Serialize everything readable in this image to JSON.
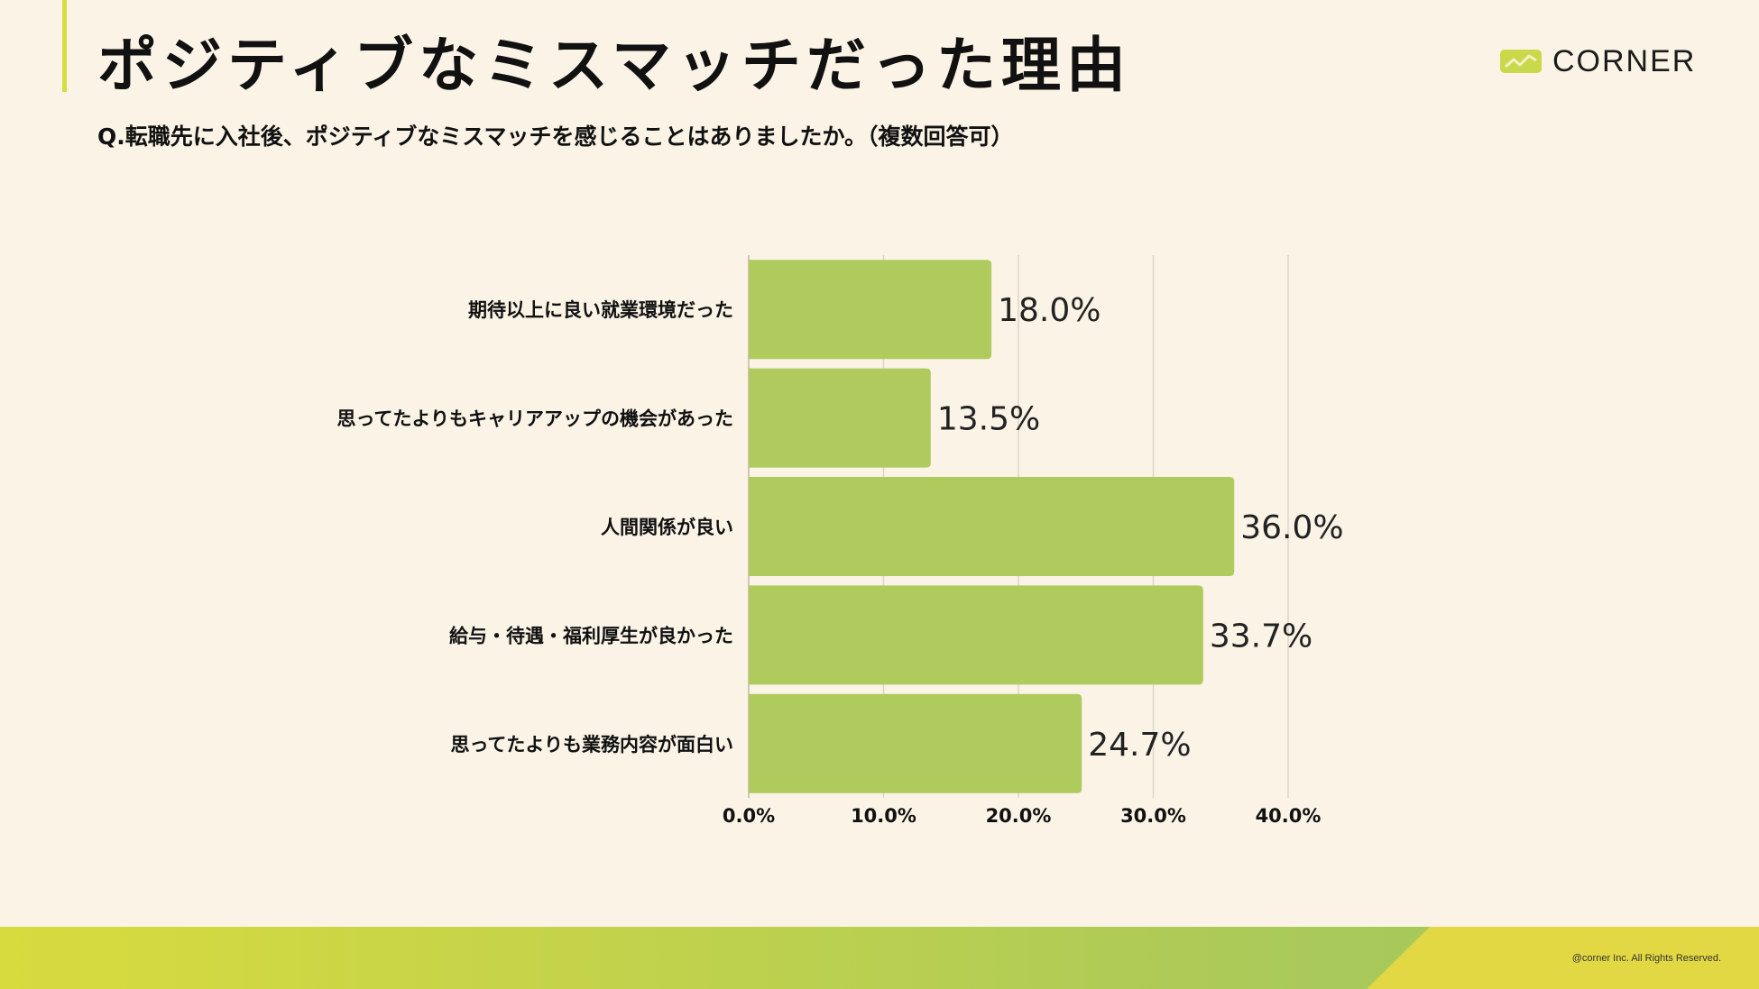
{
  "header": {
    "title": "ポジティブなミスマッチだった理由",
    "subtitle": "Q.転職先に入社後、ポジティブなミスマッチを感じることはありましたか。（複数回答可）",
    "brand": "CORNER"
  },
  "footer": {
    "copyright": "@corner Inc. All Rights Reserved."
  },
  "colors": {
    "bar": "#afcb5e",
    "background": "#faf3e6",
    "accent": "#d4df3f",
    "grid": "#dcd6c8"
  },
  "chart_data": {
    "type": "bar",
    "orientation": "horizontal",
    "categories": [
      "期待以上に良い就業環境だった",
      "思ってたよりもキャリアアップの機会があった",
      "人間関係が良い",
      "給与・待遇・福利厚生が良かった",
      "思ってたよりも業務内容が面白い"
    ],
    "values": [
      18.0,
      13.5,
      36.0,
      33.7,
      24.7
    ],
    "value_labels": [
      "18.0%",
      "13.5%",
      "36.0%",
      "33.7%",
      "24.7%"
    ],
    "x_ticks": [
      0,
      10,
      20,
      30,
      40
    ],
    "x_tick_labels": [
      "0.0%",
      "10.0%",
      "20.0%",
      "30.0%",
      "40.0%"
    ],
    "xlim": [
      0,
      40
    ],
    "grid": true
  }
}
